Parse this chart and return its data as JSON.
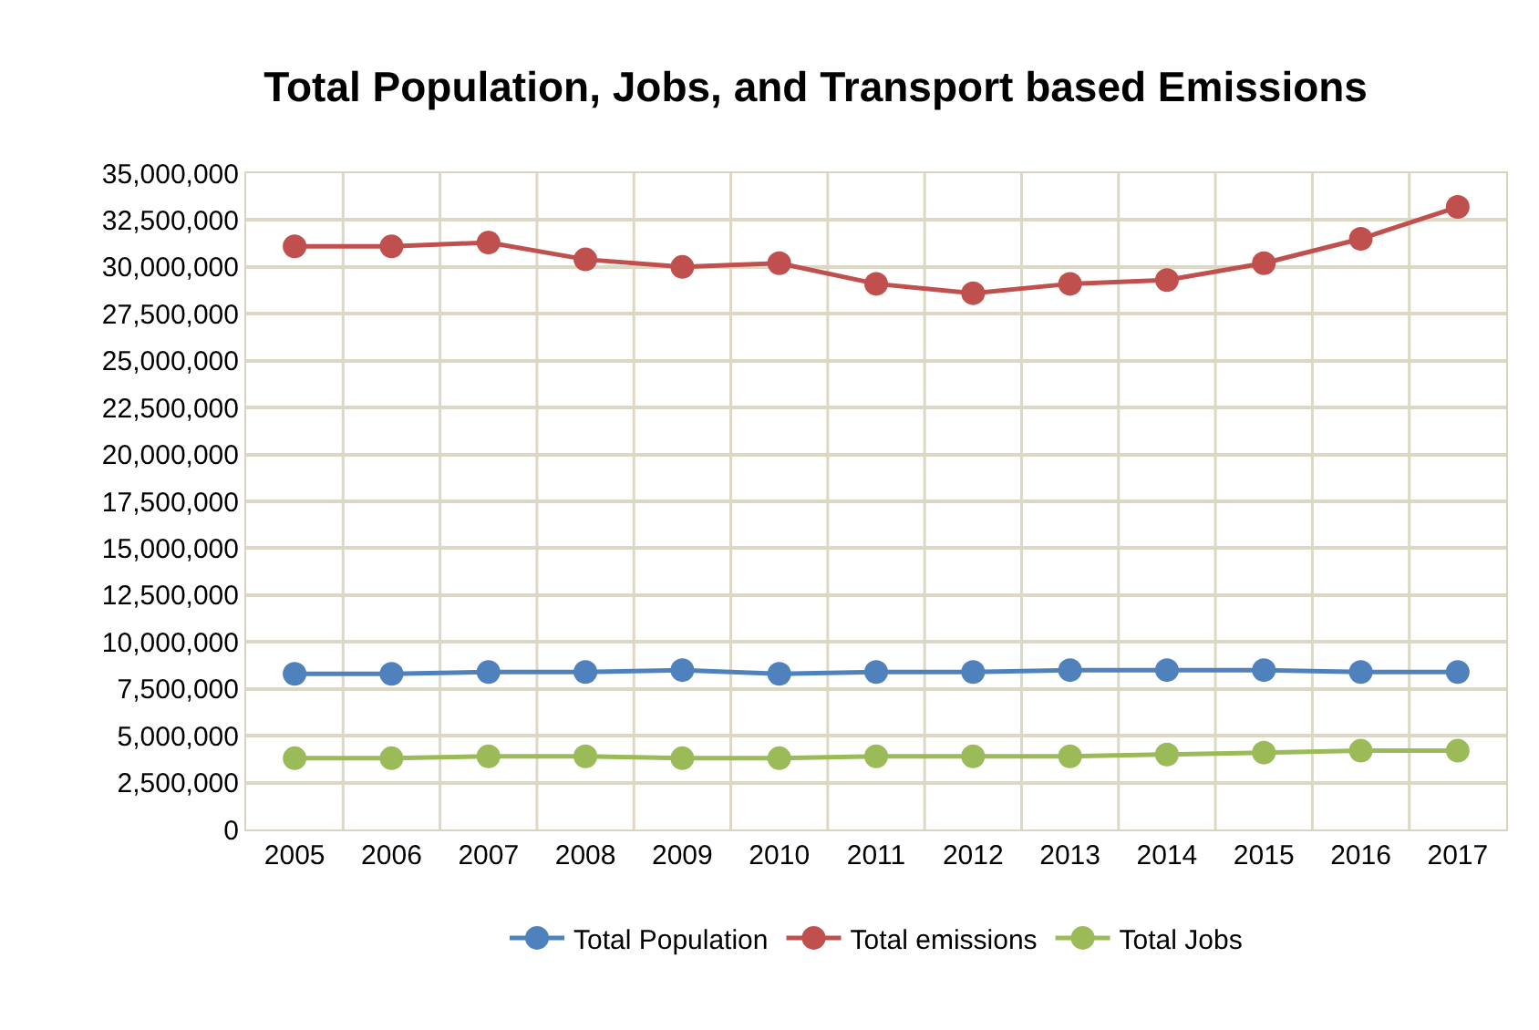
{
  "chart_data": {
    "type": "line",
    "title": "Total Population, Jobs, and Transport based Emissions",
    "categories": [
      "2005",
      "2006",
      "2007",
      "2008",
      "2009",
      "2010",
      "2011",
      "2012",
      "2013",
      "2014",
      "2015",
      "2016",
      "2017"
    ],
    "series": [
      {
        "name": "Total Population",
        "color": "#4f81bd",
        "values": [
          8300000,
          8300000,
          8400000,
          8400000,
          8500000,
          8300000,
          8400000,
          8400000,
          8500000,
          8500000,
          8500000,
          8400000,
          8400000
        ]
      },
      {
        "name": "Total emissions",
        "color": "#c0504d",
        "values": [
          31100000,
          31100000,
          31300000,
          30400000,
          30000000,
          30200000,
          29100000,
          28600000,
          29100000,
          29300000,
          30200000,
          31500000,
          33200000
        ]
      },
      {
        "name": "Total Jobs",
        "color": "#9bbb59",
        "values": [
          3800000,
          3800000,
          3900000,
          3900000,
          3800000,
          3800000,
          3900000,
          3900000,
          3900000,
          4000000,
          4100000,
          4200000,
          4200000
        ]
      }
    ],
    "ylim": [
      0,
      35000000
    ],
    "yticks": [
      {
        "value": 0,
        "label": "0"
      },
      {
        "value": 2500000,
        "label": "2,500,000"
      },
      {
        "value": 5000000,
        "label": "5,000,000"
      },
      {
        "value": 7500000,
        "label": "7,500,000"
      },
      {
        "value": 10000000,
        "label": "10,000,000"
      },
      {
        "value": 12500000,
        "label": "12,500,000"
      },
      {
        "value": 15000000,
        "label": "15,000,000"
      },
      {
        "value": 17500000,
        "label": "17,500,000"
      },
      {
        "value": 20000000,
        "label": "20,000,000"
      },
      {
        "value": 22500000,
        "label": "22,500,000"
      },
      {
        "value": 25000000,
        "label": "25,000,000"
      },
      {
        "value": 27500000,
        "label": "27,500,000"
      },
      {
        "value": 30000000,
        "label": "30,000,000"
      },
      {
        "value": 32500000,
        "label": "32,500,000"
      },
      {
        "value": 35000000,
        "label": "35,000,000"
      }
    ],
    "grid": true,
    "legend": "bottom",
    "marker": "circle",
    "line_style": "solid"
  }
}
